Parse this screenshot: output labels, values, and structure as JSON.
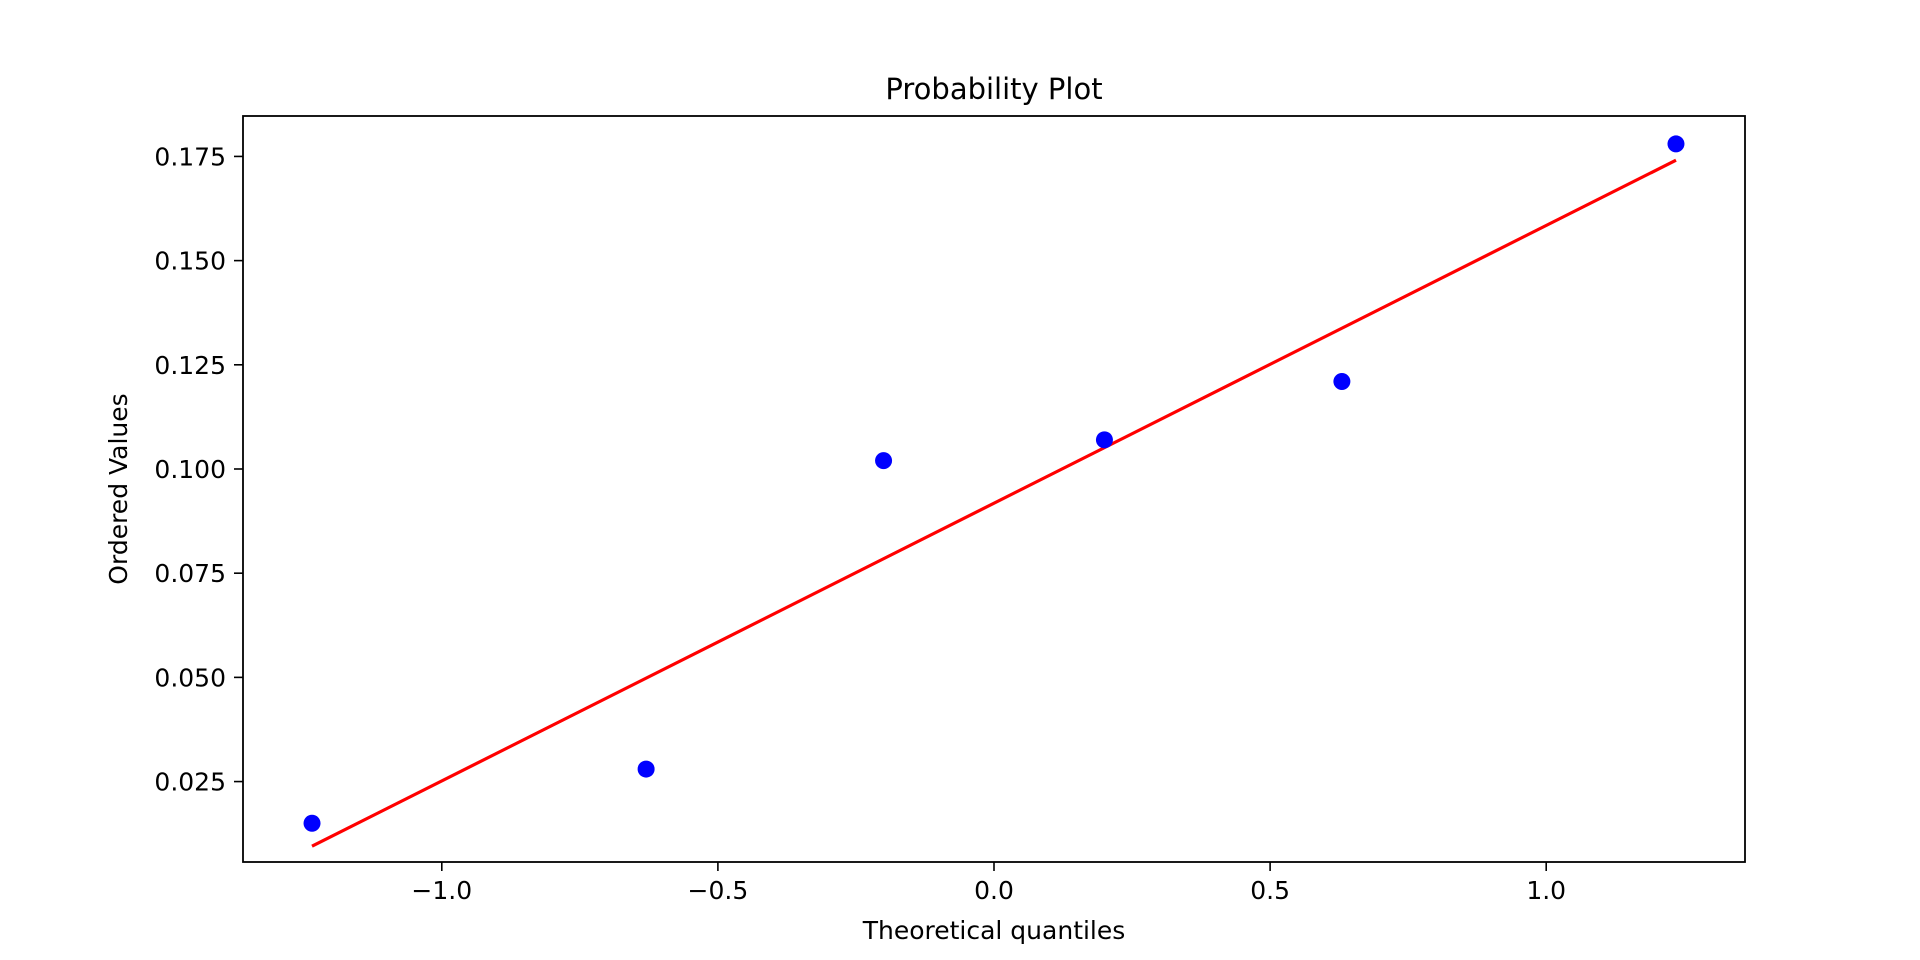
{
  "chart_data": {
    "type": "scatter",
    "title": "Probability Plot",
    "xlabel": "Theoretical quantiles",
    "ylabel": "Ordered Values",
    "xlim": [
      -1.36,
      1.36
    ],
    "ylim": [
      0.0057,
      0.1847
    ],
    "x_ticks": [
      {
        "value": -1.0,
        "label": "−1.0"
      },
      {
        "value": -0.5,
        "label": "−0.5"
      },
      {
        "value": 0.0,
        "label": "0.0"
      },
      {
        "value": 0.5,
        "label": "0.5"
      },
      {
        "value": 1.0,
        "label": "1.0"
      }
    ],
    "y_ticks": [
      {
        "value": 0.025,
        "label": "0.025"
      },
      {
        "value": 0.05,
        "label": "0.050"
      },
      {
        "value": 0.075,
        "label": "0.075"
      },
      {
        "value": 0.1,
        "label": "0.100"
      },
      {
        "value": 0.125,
        "label": "0.125"
      },
      {
        "value": 0.15,
        "label": "0.150"
      },
      {
        "value": 0.175,
        "label": "0.175"
      }
    ],
    "grid": false,
    "series": [
      {
        "kind": "points",
        "color": "#0000ff",
        "x": [
          -1.235,
          -0.63,
          -0.2,
          0.2,
          0.63,
          1.235
        ],
        "y": [
          0.015,
          0.028,
          0.102,
          0.107,
          0.121,
          0.178
        ]
      },
      {
        "kind": "fit-line",
        "color": "#ff0000",
        "x": [
          -1.235,
          1.235
        ],
        "y": [
          0.0095,
          0.1741
        ]
      }
    ]
  }
}
